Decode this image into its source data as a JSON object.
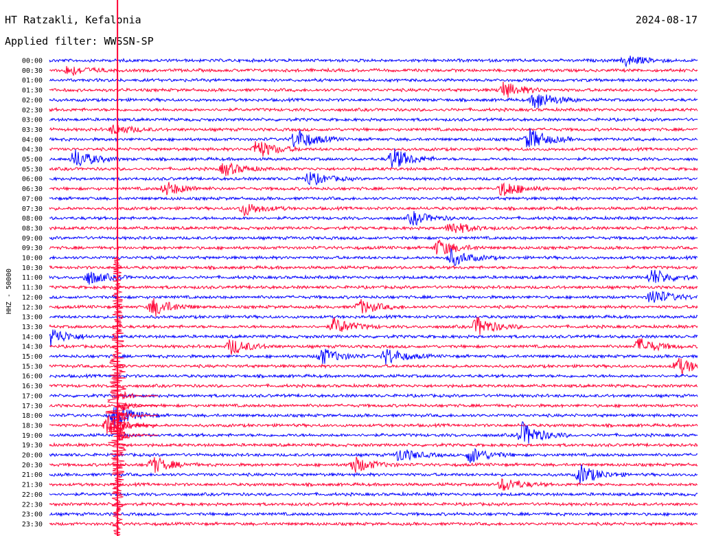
{
  "header": {
    "station": "HT Ratzakli, Kefalonia",
    "date": "2024-08-17",
    "filter": "Applied filter: WWSSN-SP"
  },
  "chart_data": {
    "type": "line",
    "title": "HT Ratzakli, Kefalonia",
    "subtitle": "Applied filter: WWSSN-SP",
    "ylabel": "HHZ - 50000",
    "xlabel": "",
    "trace_colors": [
      "#0000ff",
      "#ff0033"
    ],
    "rows": [
      "00:00",
      "00:30",
      "01:00",
      "01:30",
      "02:00",
      "02:30",
      "03:00",
      "03:30",
      "04:00",
      "04:30",
      "05:00",
      "05:30",
      "06:00",
      "06:30",
      "07:00",
      "07:30",
      "08:00",
      "08:30",
      "09:00",
      "09:30",
      "10:00",
      "10:30",
      "11:00",
      "11:30",
      "12:00",
      "12:30",
      "13:00",
      "13:30",
      "14:00",
      "14:30",
      "15:00",
      "15:30",
      "16:00",
      "16:30",
      "17:00",
      "17:30",
      "18:00",
      "18:30",
      "19:00",
      "19:30",
      "20:00",
      "20:30",
      "21:00",
      "21:30",
      "22:00",
      "22:30",
      "23:00",
      "23:30"
    ],
    "events": [
      {
        "row": 0,
        "x": 0.89,
        "amp": 8
      },
      {
        "row": 1,
        "x": 0.03,
        "amp": 8
      },
      {
        "row": 3,
        "x": 0.7,
        "amp": 12
      },
      {
        "row": 4,
        "x": 0.75,
        "amp": 14
      },
      {
        "row": 7,
        "x": 0.1,
        "amp": 8
      },
      {
        "row": 8,
        "x": 0.38,
        "amp": 16
      },
      {
        "row": 8,
        "x": 0.74,
        "amp": 16
      },
      {
        "row": 9,
        "x": 0.32,
        "amp": 14
      },
      {
        "row": 10,
        "x": 0.04,
        "amp": 14
      },
      {
        "row": 10,
        "x": 0.53,
        "amp": 16
      },
      {
        "row": 11,
        "x": 0.27,
        "amp": 10
      },
      {
        "row": 12,
        "x": 0.4,
        "amp": 10
      },
      {
        "row": 13,
        "x": 0.18,
        "amp": 10
      },
      {
        "row": 13,
        "x": 0.7,
        "amp": 12
      },
      {
        "row": 15,
        "x": 0.3,
        "amp": 10
      },
      {
        "row": 16,
        "x": 0.56,
        "amp": 10
      },
      {
        "row": 17,
        "x": 0.62,
        "amp": 10
      },
      {
        "row": 19,
        "x": 0.6,
        "amp": 12
      },
      {
        "row": 20,
        "x": 0.62,
        "amp": 12
      },
      {
        "row": 22,
        "x": 0.06,
        "amp": 10
      },
      {
        "row": 22,
        "x": 0.93,
        "amp": 12
      },
      {
        "row": 24,
        "x": 0.93,
        "amp": 12
      },
      {
        "row": 25,
        "x": 0.16,
        "amp": 14
      },
      {
        "row": 25,
        "x": 0.48,
        "amp": 10
      },
      {
        "row": 27,
        "x": 0.44,
        "amp": 12
      },
      {
        "row": 27,
        "x": 0.66,
        "amp": 14
      },
      {
        "row": 28,
        "x": 0.0,
        "amp": 14
      },
      {
        "row": 29,
        "x": 0.28,
        "amp": 12
      },
      {
        "row": 29,
        "x": 0.91,
        "amp": 12
      },
      {
        "row": 30,
        "x": 0.42,
        "amp": 12
      },
      {
        "row": 30,
        "x": 0.52,
        "amp": 12
      },
      {
        "row": 31,
        "x": 0.97,
        "amp": 12
      },
      {
        "row": 36,
        "x": 0.1,
        "amp": 16
      },
      {
        "row": 37,
        "x": 0.09,
        "amp": 16
      },
      {
        "row": 38,
        "x": 0.73,
        "amp": 18
      },
      {
        "row": 40,
        "x": 0.54,
        "amp": 10
      },
      {
        "row": 40,
        "x": 0.65,
        "amp": 12
      },
      {
        "row": 41,
        "x": 0.47,
        "amp": 12
      },
      {
        "row": 41,
        "x": 0.16,
        "amp": 12
      },
      {
        "row": 42,
        "x": 0.82,
        "amp": 14
      },
      {
        "row": 43,
        "x": 0.7,
        "amp": 10
      }
    ],
    "big_event": {
      "x": 0.105,
      "start_row": 0,
      "peak_row": 36,
      "end_row": 47
    }
  }
}
